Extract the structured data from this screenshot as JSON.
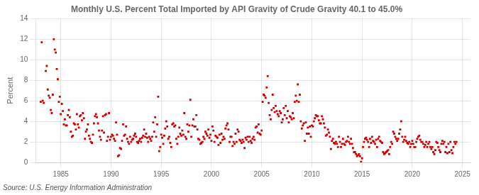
{
  "chart_data": {
    "type": "scatter",
    "title": "Monthly U.S. Percent Total Imported by API Gravity of Crude Gravity 40.1 to 45.0%",
    "ylabel": "Percent",
    "source": "Source: U.S. Energy Information Administration",
    "color": "#cc0000",
    "marker": "square",
    "grid": true,
    "xlim": [
      1982.5,
      2025.8
    ],
    "xticks": [
      1985,
      1990,
      1995,
      2000,
      2005,
      2010,
      2015,
      2020,
      2025
    ],
    "ylim": [
      0,
      14
    ],
    "yticks": [
      0,
      2,
      4,
      6,
      8,
      10,
      12,
      14
    ],
    "x": [
      1983.0,
      1983.1,
      1983.2,
      1983.3,
      1983.5,
      1983.6,
      1983.7,
      1983.8,
      1983.9,
      1984.0,
      1984.1,
      1984.2,
      1984.3,
      1984.4,
      1984.5,
      1984.6,
      1984.7,
      1984.8,
      1984.9,
      1985.0,
      1985.1,
      1985.2,
      1985.3,
      1985.4,
      1985.5,
      1985.6,
      1985.7,
      1985.8,
      1985.9,
      1986.0,
      1986.1,
      1986.2,
      1986.3,
      1986.4,
      1986.5,
      1986.6,
      1986.7,
      1986.8,
      1986.9,
      1987.0,
      1987.1,
      1987.2,
      1987.3,
      1987.4,
      1987.5,
      1987.6,
      1987.7,
      1987.8,
      1987.9,
      1988.0,
      1988.1,
      1988.2,
      1988.3,
      1988.4,
      1988.5,
      1988.6,
      1988.7,
      1988.8,
      1988.9,
      1989.0,
      1989.1,
      1989.2,
      1989.3,
      1989.4,
      1989.5,
      1989.6,
      1989.7,
      1989.8,
      1989.9,
      1990.0,
      1990.1,
      1990.2,
      1990.3,
      1990.4,
      1990.5,
      1990.6,
      1990.7,
      1990.8,
      1990.9,
      1991.0,
      1991.1,
      1991.2,
      1991.3,
      1991.4,
      1991.5,
      1991.6,
      1991.7,
      1991.8,
      1991.9,
      1992.0,
      1992.1,
      1992.2,
      1992.3,
      1992.4,
      1992.5,
      1992.6,
      1992.7,
      1992.8,
      1992.9,
      1993.0,
      1993.1,
      1993.2,
      1993.3,
      1993.4,
      1993.5,
      1993.6,
      1993.7,
      1993.8,
      1993.9,
      1994.0,
      1994.1,
      1994.2,
      1994.3,
      1994.4,
      1994.5,
      1994.6,
      1994.7,
      1994.8,
      1994.9,
      1995.0,
      1995.1,
      1995.2,
      1995.3,
      1995.4,
      1995.5,
      1995.6,
      1995.7,
      1995.8,
      1995.9,
      1996.0,
      1996.1,
      1996.2,
      1996.3,
      1996.4,
      1996.5,
      1996.6,
      1996.7,
      1996.8,
      1996.9,
      1997.0,
      1997.1,
      1997.2,
      1997.3,
      1997.4,
      1997.5,
      1997.6,
      1997.7,
      1997.8,
      1997.9,
      1998.0,
      1998.1,
      1998.2,
      1998.3,
      1998.4,
      1998.5,
      1998.6,
      1998.7,
      1998.8,
      1998.9,
      1999.0,
      1999.1,
      1999.2,
      1999.3,
      1999.4,
      1999.5,
      1999.6,
      1999.7,
      1999.8,
      1999.9,
      2000.0,
      2000.1,
      2000.2,
      2000.3,
      2000.4,
      2000.5,
      2000.6,
      2000.7,
      2000.8,
      2000.9,
      2001.0,
      2001.1,
      2001.2,
      2001.3,
      2001.4,
      2001.5,
      2001.6,
      2001.7,
      2001.8,
      2001.9,
      2002.0,
      2002.1,
      2002.2,
      2002.3,
      2002.4,
      2002.5,
      2002.6,
      2002.7,
      2002.8,
      2002.9,
      2003.0,
      2003.1,
      2003.2,
      2003.3,
      2003.4,
      2003.5,
      2003.6,
      2003.7,
      2003.8,
      2003.9,
      2004.0,
      2004.1,
      2004.2,
      2004.3,
      2004.4,
      2004.5,
      2004.6,
      2004.7,
      2004.8,
      2004.9,
      2005.0,
      2005.1,
      2005.2,
      2005.3,
      2005.4,
      2005.5,
      2005.6,
      2005.7,
      2005.8,
      2005.9,
      2006.0,
      2006.1,
      2006.2,
      2006.3,
      2006.4,
      2006.5,
      2006.6,
      2006.7,
      2006.8,
      2006.9,
      2007.0,
      2007.1,
      2007.2,
      2007.3,
      2007.4,
      2007.5,
      2007.6,
      2007.7,
      2007.8,
      2007.9,
      2008.0,
      2008.1,
      2008.2,
      2008.3,
      2008.4,
      2008.5,
      2008.6,
      2008.7,
      2008.8,
      2008.9,
      2009.0,
      2009.1,
      2009.2,
      2009.3,
      2009.4,
      2009.5,
      2009.6,
      2009.7,
      2009.8,
      2009.9,
      2010.0,
      2010.1,
      2010.2,
      2010.3,
      2010.4,
      2010.5,
      2010.6,
      2010.7,
      2010.8,
      2010.9,
      2011.0,
      2011.1,
      2011.2,
      2011.3,
      2011.4,
      2011.5,
      2011.6,
      2011.7,
      2011.8,
      2011.9,
      2012.0,
      2012.1,
      2012.2,
      2012.3,
      2012.4,
      2012.5,
      2012.6,
      2012.7,
      2012.8,
      2012.9,
      2013.0,
      2013.1,
      2013.2,
      2013.3,
      2013.4,
      2013.5,
      2013.6,
      2013.7,
      2013.8,
      2013.9,
      2014.0,
      2014.1,
      2014.2,
      2014.3,
      2014.4,
      2014.5,
      2014.6,
      2014.7,
      2014.8,
      2014.9,
      2015.0,
      2015.1,
      2015.2,
      2015.3,
      2015.4,
      2015.5,
      2015.6,
      2015.7,
      2015.8,
      2015.9,
      2016.0,
      2016.1,
      2016.2,
      2016.3,
      2016.4,
      2016.5,
      2016.6,
      2016.7,
      2016.8,
      2016.9,
      2017.0,
      2017.1,
      2017.2,
      2017.3,
      2017.4,
      2017.5,
      2017.6,
      2017.7,
      2017.8,
      2017.9,
      2018.0,
      2018.1,
      2018.2,
      2018.3,
      2018.4,
      2018.5,
      2018.6,
      2018.7,
      2018.8,
      2018.9,
      2019.0,
      2019.1,
      2019.2,
      2019.3,
      2019.4,
      2019.5,
      2019.6,
      2019.7,
      2019.8,
      2019.9,
      2020.0,
      2020.1,
      2020.2,
      2020.3,
      2020.4,
      2020.5,
      2020.6,
      2020.7,
      2020.8,
      2020.9,
      2021.0,
      2021.1,
      2021.2,
      2021.3,
      2021.4,
      2021.5,
      2021.6,
      2021.7,
      2021.8,
      2021.9,
      2022.0,
      2022.1,
      2022.2,
      2022.3,
      2022.4,
      2022.5,
      2022.6,
      2022.7,
      2022.8,
      2022.9,
      2023.0,
      2023.1,
      2023.2,
      2023.3,
      2023.4,
      2023.5,
      2023.6,
      2023.7,
      2023.8,
      2023.9,
      2024.0,
      2024.1,
      2024.2,
      2024.3,
      2024.4
    ],
    "values": [
      5.9,
      11.7,
      6.0,
      5.8,
      8.9,
      9.4,
      7.1,
      6.5,
      6.3,
      5.1,
      4.8,
      6.6,
      12.0,
      11.0,
      10.7,
      9.1,
      8.1,
      5.9,
      6.4,
      4.7,
      5.7,
      5.0,
      3.7,
      4.2,
      3.6,
      3.6,
      4.6,
      5.1,
      4.4,
      3.0,
      2.5,
      2.6,
      3.8,
      3.7,
      3.2,
      4.7,
      3.7,
      3.4,
      4.5,
      4.6,
      4.1,
      4.8,
      4.3,
      2.3,
      3.0,
      3.2,
      3.7,
      2.6,
      2.3,
      2.0,
      1.9,
      2.7,
      3.8,
      4.5,
      4.7,
      4.4,
      3.8,
      3.1,
      2.5,
      2.2,
      3.1,
      4.5,
      2.9,
      4.6,
      4.7,
      2.1,
      2.5,
      4.8,
      2.2,
      2.5,
      2.7,
      2.6,
      2.3,
      2.1,
      3.9,
      2.7,
      0.6,
      0.7,
      1.4,
      1.3,
      2.1,
      3.7,
      2.6,
      2.7,
      3.5,
      2.3,
      2.0,
      1.8,
      2.5,
      2.0,
      2.2,
      2.3,
      2.6,
      2.8,
      2.5,
      2.0,
      1.9,
      2.1,
      2.3,
      2.0,
      2.4,
      2.6,
      3.2,
      2.5,
      2.8,
      2.4,
      2.0,
      2.5,
      2.3,
      2.1,
      2.5,
      3.9,
      3.0,
      4.4,
      2.5,
      3.7,
      6.4,
      1.1,
      1.5,
      2.7,
      2.4,
      1.8,
      2.6,
      3.3,
      4.0,
      3.5,
      2.3,
      2.5,
      1.9,
      1.5,
      3.7,
      3.8,
      3.5,
      3.6,
      2.3,
      1.8,
      2.5,
      3.4,
      2.8,
      2.6,
      3.1,
      2.7,
      4.8,
      2.5,
      2.3,
      3.7,
      3.0,
      3.6,
      6.1,
      2.5,
      3.6,
      4.2,
      3.5,
      3.5,
      4.6,
      3.2,
      2.3,
      2.2,
      1.8,
      1.9,
      2.0,
      2.5,
      2.3,
      3.0,
      2.8,
      2.6,
      3.2,
      2.4,
      2.7,
      2.1,
      3.5,
      3.1,
      2.0,
      2.6,
      2.5,
      2.4,
      1.7,
      2.7,
      1.9,
      2.8,
      2.2,
      2.5,
      2.3,
      3.3,
      3.6,
      3.8,
      3.2,
      2.0,
      2.5,
      2.5,
      1.6,
      2.0,
      1.8,
      2.8,
      2.0,
      3.2,
      3.0,
      2.2,
      2.1,
      1.9,
      2.2,
      2.0,
      1.4,
      2.4,
      2.2,
      2.5,
      2.0,
      2.5,
      2.1,
      1.9,
      2.3,
      2.5,
      2.2,
      3.4,
      3.5,
      2.9,
      3.7,
      2.8,
      2.7,
      3.1,
      5.9,
      6.6,
      6.5,
      6.3,
      7.3,
      8.4,
      5.8,
      4.6,
      4.2,
      5.1,
      6.6,
      5.3,
      4.9,
      5.5,
      5.0,
      4.7,
      4.5,
      5.0,
      4.8,
      3.9,
      4.2,
      5.3,
      4.6,
      5.5,
      4.3,
      5.0,
      3.9,
      4.5,
      4.4,
      4.2,
      4.8,
      4.3,
      5.9,
      6.5,
      6.0,
      7.6,
      5.9,
      6.6,
      4.0,
      3.3,
      3.6,
      3.8,
      2.1,
      3.9,
      2.8,
      3.4,
      2.8,
      3.5,
      2.5,
      3.6,
      3.5,
      4.0,
      4.3,
      4.6,
      4.5,
      4.5,
      4.1,
      3.8,
      3.8,
      4.5,
      4.2,
      3.8,
      3.4,
      2.6,
      2.7,
      3.2,
      2.9,
      2.5,
      1.3,
      2.1,
      2.3,
      1.9,
      1.8,
      2.0,
      1.8,
      1.5,
      2.5,
      2.0,
      1.5,
      1.8,
      2.3,
      1.8,
      1.7,
      2.0,
      2.1,
      2.5,
      2.0,
      1.8,
      2.3,
      1.8,
      1.4,
      1.0,
      1.0,
      0.8,
      0.6,
      0.7,
      0.8,
      0.6,
      0.05,
      0.4,
      1.5,
      2.0,
      2.3,
      2.4,
      2.2,
      2.0,
      1.5,
      2.3,
      1.9,
      2.5,
      2.1,
      2.0,
      1.8,
      2.2,
      1.5,
      2.3,
      2.5,
      2.1,
      2.0,
      1.9,
      1.0,
      0.8,
      0.9,
      1.0,
      1.1,
      1.2,
      0.8,
      1.5,
      2.0,
      1.8,
      3.0,
      2.8,
      2.5,
      2.3,
      2.1,
      2.3,
      2.8,
      3.2,
      4.0,
      2.5,
      2.0,
      2.2,
      2.5,
      2.1,
      1.9,
      1.8,
      2.0,
      1.5,
      1.8,
      2.1,
      1.8,
      1.5,
      1.5,
      2.0,
      2.3,
      2.5,
      2.6,
      2.2,
      2.0,
      2.0,
      1.8,
      1.5,
      1.7,
      2.0,
      1.5,
      1.8,
      2.0,
      1.5,
      1.3,
      1.5,
      1.0,
      0.8,
      1.2,
      2.0,
      1.9,
      1.5,
      1.2,
      1.0,
      1.8,
      2.1,
      1.8,
      2.0,
      1.0,
      1.5,
      0.9,
      1.8,
      1.0,
      2.0,
      1.2,
      0.9,
      1.5,
      2.0,
      1.8,
      2.0
    ]
  }
}
